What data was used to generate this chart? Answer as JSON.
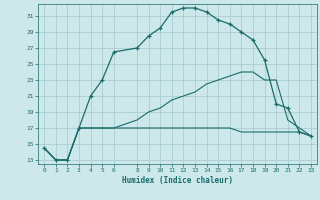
{
  "xlabel": "Humidex (Indice chaleur)",
  "background_color": "#cce8ea",
  "grid_color": "#aacdd0",
  "line_color": "#1a6b6b",
  "xlim": [
    -0.5,
    23.5
  ],
  "ylim": [
    12.5,
    32.5
  ],
  "yticks": [
    13,
    15,
    17,
    19,
    21,
    23,
    25,
    27,
    29,
    31
  ],
  "xticks": [
    0,
    1,
    2,
    3,
    4,
    5,
    6,
    8,
    9,
    10,
    11,
    12,
    13,
    14,
    15,
    16,
    17,
    18,
    19,
    20,
    21,
    22,
    23
  ],
  "series1_x": [
    0,
    1,
    2,
    3,
    4,
    5,
    6,
    8,
    9,
    10,
    11,
    12,
    13,
    14,
    15,
    16,
    17,
    18,
    19,
    20,
    21,
    22,
    23
  ],
  "series1_y": [
    14.5,
    13,
    13,
    17,
    21,
    23,
    26.5,
    27,
    28.5,
    29.5,
    31.5,
    32,
    32,
    31.5,
    30.5,
    30,
    29,
    28,
    25.5,
    20,
    19.5,
    16.5,
    16
  ],
  "series2_x": [
    0,
    1,
    2,
    3,
    4,
    5,
    6,
    8,
    9,
    10,
    11,
    12,
    13,
    14,
    15,
    16,
    17,
    18,
    19,
    20,
    21,
    22,
    23
  ],
  "series2_y": [
    14.5,
    13,
    13,
    17,
    17,
    17,
    17,
    17,
    17,
    17,
    17,
    17,
    17,
    17,
    17,
    17,
    16.5,
    16.5,
    16.5,
    16.5,
    16.5,
    16.5,
    16
  ],
  "series3_x": [
    0,
    1,
    2,
    3,
    6,
    8,
    9,
    10,
    11,
    12,
    13,
    14,
    15,
    16,
    17,
    18,
    19,
    20,
    21,
    22,
    23
  ],
  "series3_y": [
    14.5,
    13,
    13,
    17,
    17,
    18,
    19,
    19.5,
    20.5,
    21,
    21.5,
    22.5,
    23,
    23.5,
    24,
    24,
    23,
    23,
    18,
    17,
    16
  ]
}
